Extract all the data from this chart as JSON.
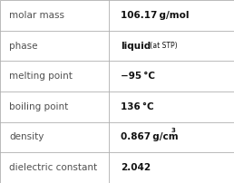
{
  "rows": [
    {
      "label": "molar mass",
      "value_main": "106.17 g/mol",
      "superscript": null,
      "has_at_stp": false
    },
    {
      "label": "phase",
      "value_main": "liquid",
      "superscript": null,
      "has_at_stp": true
    },
    {
      "label": "melting point",
      "value_main": "−95 °C",
      "superscript": null,
      "has_at_stp": false
    },
    {
      "label": "boiling point",
      "value_main": "136 °C",
      "superscript": null,
      "has_at_stp": false
    },
    {
      "label": "density",
      "value_main": "0.867 g/cm",
      "superscript": "3",
      "has_at_stp": false
    },
    {
      "label": "dielectric constant",
      "value_main": "2.042",
      "superscript": null,
      "has_at_stp": false
    }
  ],
  "col_split": 0.465,
  "background_color": "#ffffff",
  "border_color": "#b0b0b0",
  "label_color": "#505050",
  "value_color": "#111111",
  "label_fontsize": 7.5,
  "value_fontsize": 7.5,
  "stp_fontsize": 5.5,
  "superscript_fontsize": 5.0
}
